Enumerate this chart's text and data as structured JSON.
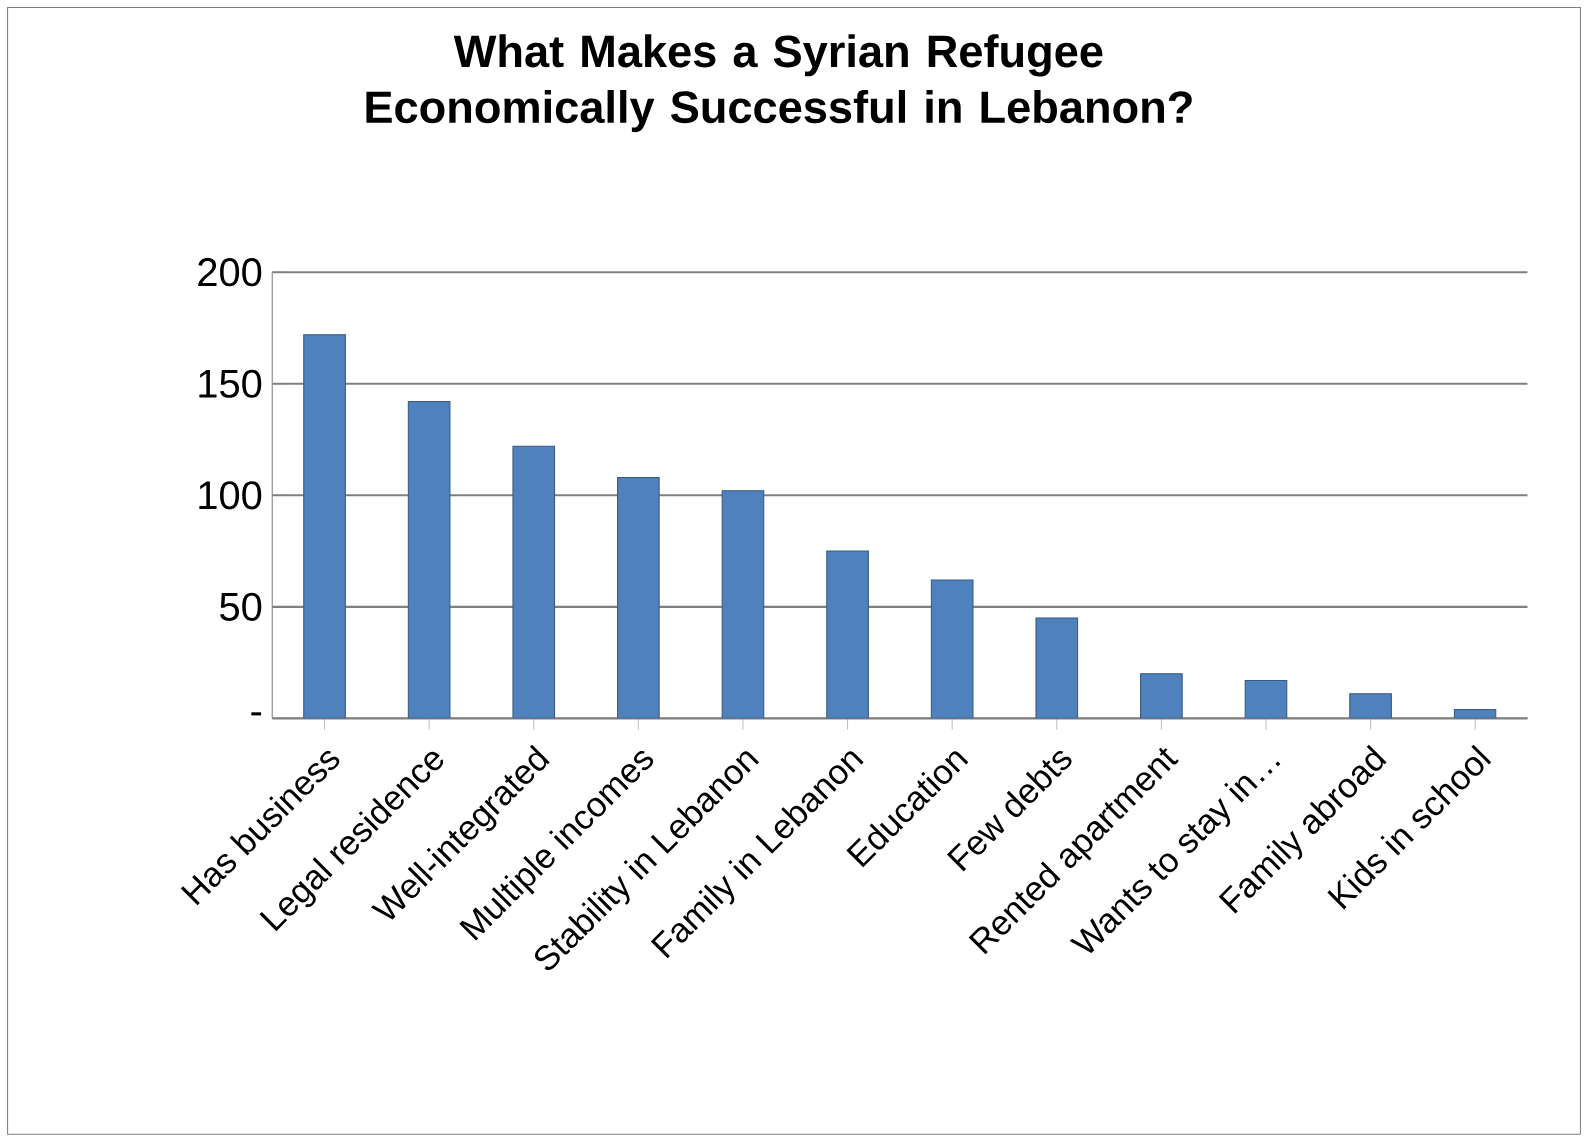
{
  "chart_data": {
    "type": "bar",
    "title": "What Makes a Syrian Refugee  Economically Successful in Lebanon?",
    "categories": [
      "Has business",
      "Legal residence",
      "Well-integrated",
      "Multiple incomes",
      "Stability in Lebanon",
      "Family in Lebanon",
      "Education",
      "Few debts",
      "Rented apartment",
      "Wants to stay in…",
      "Family abroad",
      "Kids in school"
    ],
    "values": [
      172,
      142,
      122,
      108,
      102,
      75,
      62,
      45,
      20,
      17,
      11,
      4
    ],
    "color": "#4f81bd",
    "ylim": [
      0,
      200
    ],
    "yticks": [
      {
        "value": 0,
        "label": "-"
      },
      50,
      100,
      150,
      200
    ],
    "grid": "y"
  }
}
